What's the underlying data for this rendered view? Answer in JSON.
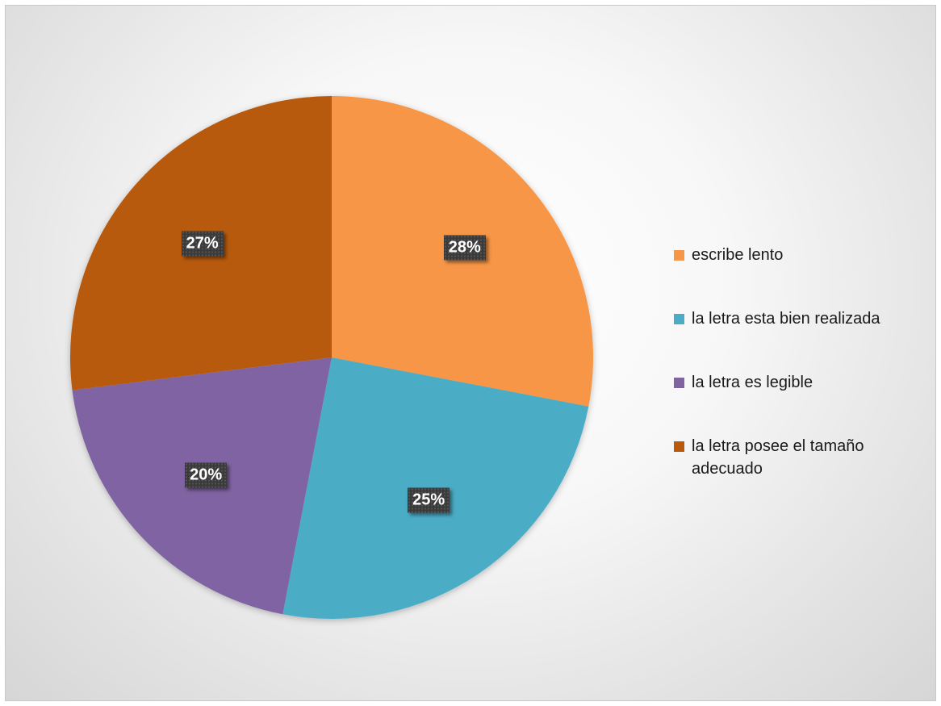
{
  "chart_data": {
    "type": "pie",
    "slices": [
      {
        "name": "escribe lento",
        "value": 28,
        "label": "28%",
        "color": "#F79646"
      },
      {
        "name": "la letra esta bien realizada",
        "value": 25,
        "label": "25%",
        "color": "#4BACC6"
      },
      {
        "name": "la letra es legible",
        "value": 20,
        "label": "20%",
        "color": "#8064A2"
      },
      {
        "name": "la letra posee el tamaño adecuado",
        "value": 27,
        "label": "27%",
        "color": "#B85A0A"
      }
    ],
    "legend_position": "right"
  }
}
